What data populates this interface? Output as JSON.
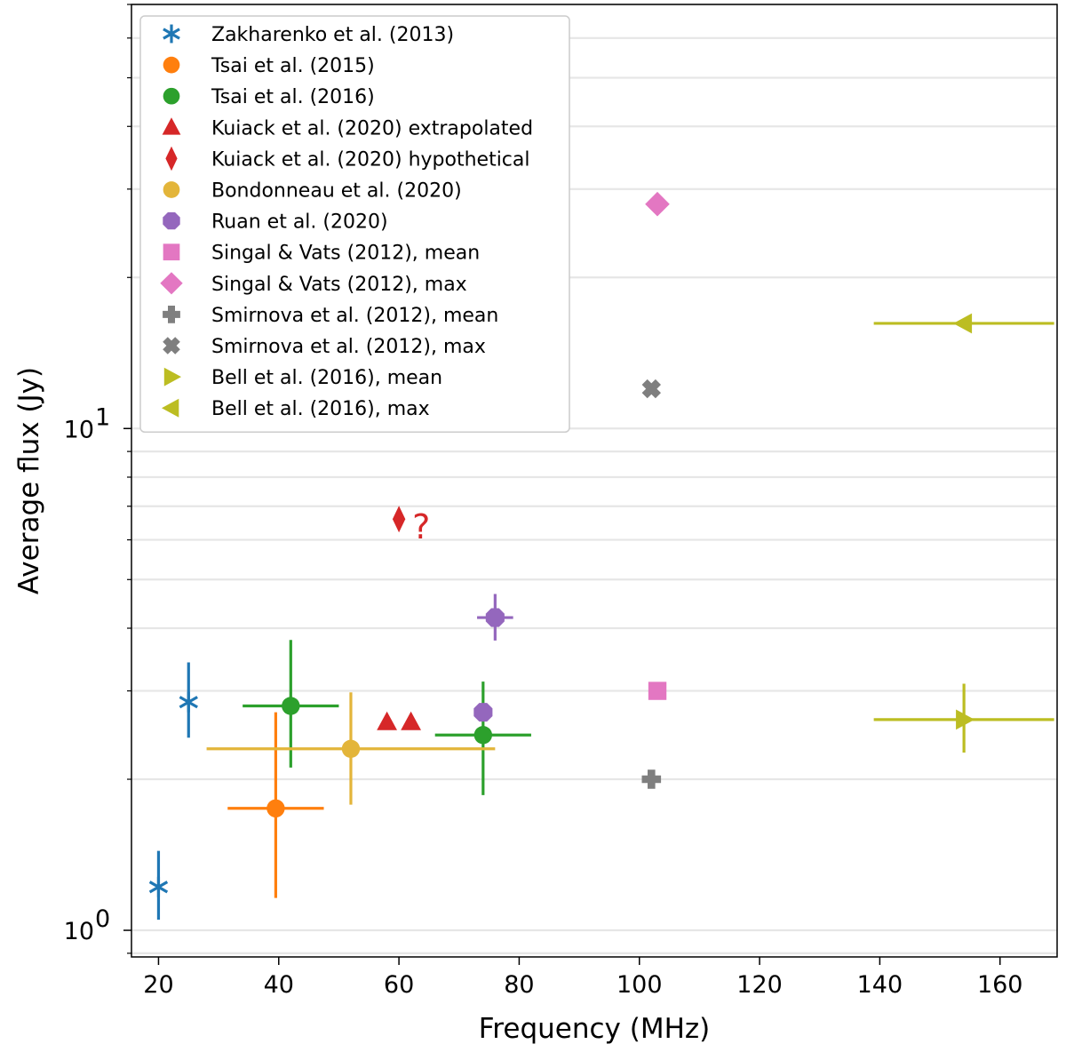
{
  "chart_data": {
    "type": "scatter",
    "xlabel": "Frequency (MHz)",
    "ylabel": "Average flux (Jy)",
    "xlim": [
      15.5,
      169.5
    ],
    "ylim": [
      0.885,
      70
    ],
    "yscale": "log",
    "x_ticks": [
      20,
      40,
      60,
      80,
      100,
      120,
      140,
      160
    ],
    "x_tick_labels": [
      "20",
      "40",
      "60",
      "80",
      "100",
      "120",
      "140",
      "160"
    ],
    "y_major_ticks": [
      1,
      10
    ],
    "y_major_tick_base": [
      "10",
      "10"
    ],
    "y_major_tick_exponent": [
      "0",
      "1"
    ],
    "grid": "horizontal",
    "legend_location": "top-left",
    "annotation": {
      "text": "?",
      "x": 64,
      "y": 6.5
    },
    "series": [
      {
        "name": "Zakharenko et al. (2013)",
        "color": "#1f77b4",
        "marker": "asterisk",
        "points": [
          {
            "x": 20,
            "y": 1.22,
            "yerr": [
              1.05,
              1.44
            ]
          },
          {
            "x": 25,
            "y": 2.85,
            "yerr": [
              2.42,
              3.42
            ]
          }
        ]
      },
      {
        "name": "Tsai et al. (2015)",
        "color": "#ff7f0e",
        "marker": "circle",
        "points": [
          {
            "x": 39.5,
            "y": 1.75,
            "xerr": [
              31.5,
              47.5
            ],
            "yerr": [
              1.16,
              2.72
            ]
          }
        ]
      },
      {
        "name": "Tsai et al. (2016)",
        "color": "#2ca02c",
        "marker": "circle",
        "points": [
          {
            "x": 42,
            "y": 2.8,
            "xerr": [
              34,
              50
            ],
            "yerr": [
              2.11,
              3.79
            ]
          },
          {
            "x": 74,
            "y": 2.45,
            "xerr": [
              66,
              82
            ],
            "yerr": [
              1.86,
              3.13
            ]
          }
        ]
      },
      {
        "name": "Kuiack et al. (2020) extrapolated",
        "color": "#d62728",
        "marker": "triangle",
        "points": [
          {
            "x": 58,
            "y": 2.6
          },
          {
            "x": 62,
            "y": 2.6
          }
        ]
      },
      {
        "name": "Kuiack et al. (2020) hypothetical",
        "color": "#d62728",
        "marker": "thin_diamond",
        "points": [
          {
            "x": 60,
            "y": 6.6
          }
        ]
      },
      {
        "name": "Bondonneau et al. (2020)",
        "color": "#e3b53a",
        "marker": "circle",
        "points": [
          {
            "x": 52,
            "y": 2.3,
            "xerr": [
              28,
              76
            ],
            "yerr": [
              1.78,
              2.98
            ]
          }
        ]
      },
      {
        "name": "Ruan et al. (2020)",
        "color": "#9467bd",
        "marker": "octagon",
        "points": [
          {
            "x": 76,
            "y": 4.2,
            "xerr": [
              73,
              79
            ],
            "yerr": [
              3.78,
              4.68
            ]
          },
          {
            "x": 74,
            "y": 2.72
          }
        ]
      },
      {
        "name": "Singal & Vats (2012), mean",
        "color": "#e377c2",
        "marker": "square",
        "points": [
          {
            "x": 103,
            "y": 3.0
          }
        ]
      },
      {
        "name": "Singal & Vats (2012), max",
        "color": "#e377c2",
        "marker": "diamond",
        "points": [
          {
            "x": 103,
            "y": 28
          }
        ]
      },
      {
        "name": "Smirnova et al. (2012), mean",
        "color": "#7f7f7f",
        "marker": "plus_filled",
        "points": [
          {
            "x": 102,
            "y": 2.0
          }
        ]
      },
      {
        "name": "Smirnova et al. (2012), max",
        "color": "#7f7f7f",
        "marker": "x_filled",
        "points": [
          {
            "x": 102,
            "y": 12
          }
        ]
      },
      {
        "name": "Bell et al. (2016), mean",
        "color": "#bcbd22",
        "marker": "triangle_right",
        "points": [
          {
            "x": 154,
            "y": 2.63,
            "xerr": [
              139,
              169
            ],
            "yerr": [
              2.26,
              3.1
            ]
          }
        ]
      },
      {
        "name": "Bell et al. (2016), max",
        "color": "#bcbd22",
        "marker": "triangle_left",
        "points": [
          {
            "x": 154,
            "y": 16.2,
            "xerr": [
              139,
              169
            ]
          }
        ]
      }
    ]
  }
}
